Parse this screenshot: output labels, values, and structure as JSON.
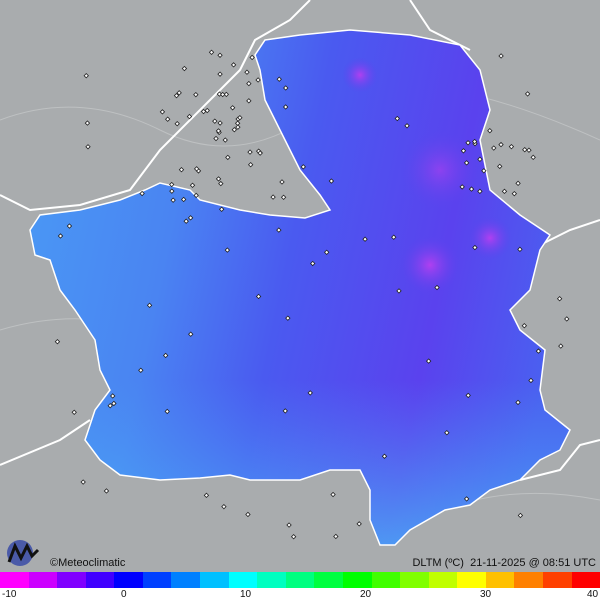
{
  "map": {
    "variable": "DLTM (ºC)",
    "datetime": "21-11-2025 @ 08:51 UTC",
    "credit": "©Meteoclimatic"
  },
  "legend": {
    "ticks": [
      "-10",
      "0",
      "10",
      "20",
      "30",
      "40"
    ],
    "range": [
      -10,
      40
    ],
    "colors": [
      "#ff00ff",
      "#cc00ff",
      "#8000ff",
      "#4000ff",
      "#0000ff",
      "#0040ff",
      "#0080ff",
      "#00c0ff",
      "#00ffff",
      "#00ffc0",
      "#00ff80",
      "#00ff40",
      "#00ff00",
      "#40ff00",
      "#80ff00",
      "#c0ff00",
      "#ffff00",
      "#ffc000",
      "#ff8000",
      "#ff4000",
      "#ff0000"
    ]
  },
  "colors": {
    "background": "#a9acae",
    "cold_field": "#5a3ff0",
    "mild_field": "#4a9af5"
  }
}
